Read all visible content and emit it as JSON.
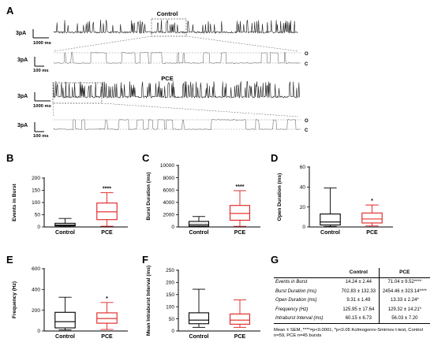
{
  "panel_labels": {
    "A": "A",
    "B": "B",
    "C": "C",
    "D": "D",
    "E": "E",
    "F": "F",
    "G": "G"
  },
  "traces": {
    "control_title": "Control",
    "pce_title": "PCE",
    "scale_3pa": "3pA",
    "scale_1000ms": "1000 ms",
    "scale_100ms": "100 ms",
    "open_label": "O",
    "closed_label": "C",
    "colors": {
      "trace": "#1a1a1a",
      "expanded_trace": "#555555",
      "guides": "#777777"
    }
  },
  "chart_data": [
    {
      "id": "B",
      "type": "boxplot",
      "ylabel": "Events in Burst",
      "ylim": [
        0,
        200
      ],
      "yticks": [
        0,
        50,
        100,
        150,
        200
      ],
      "categories": [
        "Control",
        "PCE"
      ],
      "boxes": [
        {
          "min": 1,
          "q1": 4,
          "median": 8,
          "q3": 15,
          "max": 35
        },
        {
          "min": 3,
          "q1": 30,
          "median": 62,
          "q3": 98,
          "max": 140
        }
      ],
      "colors": [
        "#000000",
        "#e02020"
      ],
      "significance": [
        {
          "category": "PCE",
          "label": "****"
        }
      ]
    },
    {
      "id": "C",
      "type": "boxplot",
      "ylabel": "Burst Duration (ms)",
      "ylim": [
        0,
        10000
      ],
      "yticks": [
        0,
        2000,
        4000,
        6000,
        8000,
        10000
      ],
      "categories": [
        "Control",
        "PCE"
      ],
      "boxes": [
        {
          "min": 20,
          "q1": 150,
          "median": 400,
          "q3": 900,
          "max": 1700
        },
        {
          "min": 100,
          "q1": 1100,
          "median": 2200,
          "q3": 3500,
          "max": 5900
        }
      ],
      "colors": [
        "#000000",
        "#e02020"
      ],
      "significance": [
        {
          "category": "PCE",
          "label": "****"
        }
      ]
    },
    {
      "id": "D",
      "type": "boxplot",
      "ylabel": "Open Duration (ms)",
      "ylim": [
        0,
        60
      ],
      "yticks": [
        0,
        20,
        40,
        60
      ],
      "categories": [
        "Control",
        "PCE"
      ],
      "boxes": [
        {
          "min": 0.5,
          "q1": 2,
          "median": 5,
          "q3": 13,
          "max": 39
        },
        {
          "min": 1,
          "q1": 4,
          "median": 8,
          "q3": 14,
          "max": 22
        }
      ],
      "colors": [
        "#000000",
        "#e02020"
      ],
      "significance": [
        {
          "category": "PCE",
          "label": "*"
        }
      ]
    },
    {
      "id": "E",
      "type": "boxplot",
      "ylabel": "Frequency (Hz)",
      "ylim": [
        0,
        600
      ],
      "yticks": [
        0,
        200,
        400,
        600
      ],
      "categories": [
        "Control",
        "PCE"
      ],
      "boxes": [
        {
          "min": 10,
          "q1": 30,
          "median": 90,
          "q3": 180,
          "max": 325
        },
        {
          "min": 15,
          "q1": 75,
          "median": 120,
          "q3": 175,
          "max": 275
        }
      ],
      "colors": [
        "#000000",
        "#e02020"
      ],
      "significance": [
        {
          "category": "PCE",
          "label": "*"
        }
      ]
    },
    {
      "id": "F",
      "type": "boxplot",
      "ylabel": "Mean Intraburst Interval (ms)",
      "ylim": [
        0,
        250
      ],
      "yticks": [
        0,
        50,
        100,
        150,
        200,
        250
      ],
      "categories": [
        "Control",
        "PCE"
      ],
      "boxes": [
        {
          "min": 15,
          "q1": 30,
          "median": 45,
          "q3": 75,
          "max": 172
        },
        {
          "min": 15,
          "q1": 28,
          "median": 45,
          "q3": 70,
          "max": 128
        }
      ],
      "colors": [
        "#000000",
        "#e02020"
      ],
      "significance": []
    },
    {
      "id": "G",
      "type": "table",
      "columns": [
        "",
        "Control",
        "PCE"
      ],
      "rows": [
        {
          "label": "Events in Burst",
          "control": "14.24 ± 2.44",
          "pce": "71.04 ± 9.52****"
        },
        {
          "label": "Burst Duration (ms)",
          "control": "702.83 ± 132.33",
          "pce": "2454.46 ± 323.14****"
        },
        {
          "label": "Open Duration (ms)",
          "control": "9.31 ± 1.49",
          "pce": "13.33 ± 2.24*"
        },
        {
          "label": "Frequency (Hz)",
          "control": "125.95 ± 17.64",
          "pce": "129.32 ± 14.21*"
        },
        {
          "label": "Intraburst Interval (ms)",
          "control": "60.15 ± 6.73",
          "pce": "56.03 ± 7.20"
        }
      ],
      "note": "Mean ± SEM, ****=p<0.0001, *p<0.05 Kolmogorov-Smirnov t-test, Control n=59, PCE n=45 bursts"
    }
  ]
}
